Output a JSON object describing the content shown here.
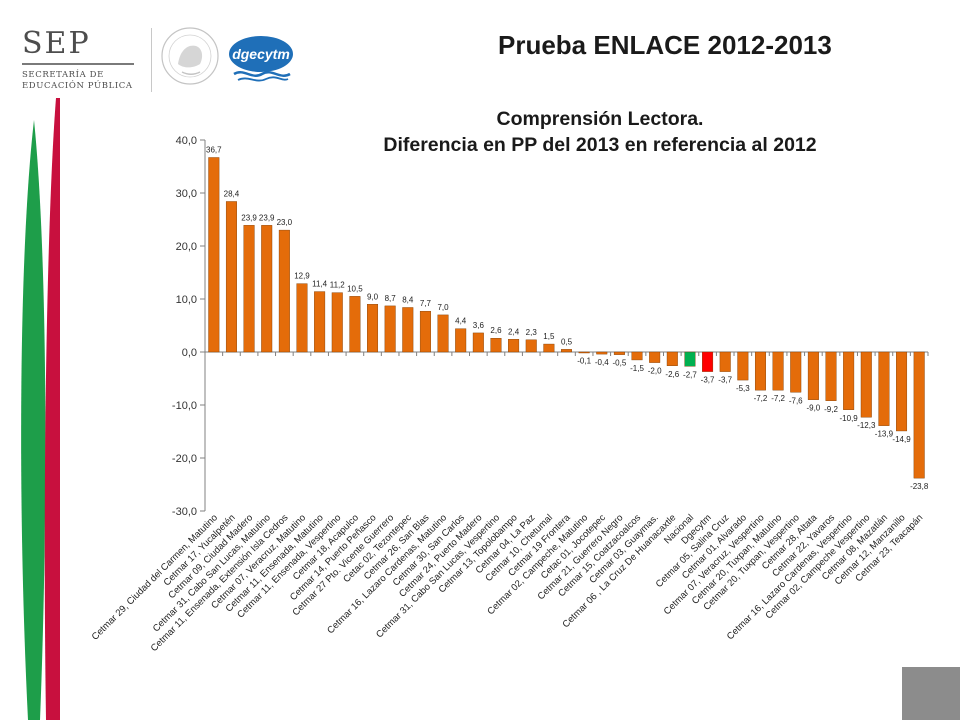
{
  "header": {
    "title": "Prueba ENLACE 2012-2013",
    "logos": {
      "sep": "SEP",
      "sep_subtitle_1": "SECRETARÍA DE",
      "sep_subtitle_2": "EDUCACIÓN PÚBLICA",
      "dgecytm": "dgecytm",
      "seal_text": "ESTADOS UNIDOS MEXICANOS"
    }
  },
  "colors": {
    "bar_default": "#E46C0A",
    "bar_national": "#00B050",
    "bar_dgecytm": "#FF0000",
    "stripe_green": "#1E9E4A",
    "stripe_red": "#C8103E"
  },
  "chart_data": {
    "type": "bar",
    "title": "Comprensión Lectora.",
    "subtitle": "Diferencia en PP del 2013 en referencia al 2012",
    "ylim": [
      -30,
      40
    ],
    "yticks": [
      "40,0",
      "30,0",
      "20,0",
      "10,0",
      "0,0",
      "-10,0",
      "-20,0",
      "-30,0"
    ],
    "grid": false,
    "legend": "none",
    "categories": [
      "Cetmar 29, Ciudad del Carmen, Matutino",
      "Cetmar 17, Yucalpetén",
      "Cetmar 09, Ciudad Madero",
      "Cetmar 31, Cabo San Lucas, Matutino",
      "Cetmar 11, Ensenada, Extensión Isla Cedros",
      "Cetmar 07, Veracruz, Matutino",
      "Cetmar 11, Ensenada, Matutino",
      "Cetmar 11, Ensenada, Vespertino",
      "Cetmar 18, Acapulco",
      "Cetmar 14, Puerto Peñasco",
      "Cetmar 27 Pto. Vicente Guerrero",
      "Cetac 02, Tezontepec",
      "Cetmar 26, San Blas",
      "Cetmar 16, Lazaro Cardenas, Matutino",
      "Cetmar 30, San Carlos",
      "Cetmar 24, Puerto Madero",
      "Cetmar 31, Cabo San Lucas, Vespertino",
      "Cetmar 13, Topolobampo",
      "Cetmar 04, La Paz",
      "Cetmar 10, Chetumal",
      "Cetmar 19 Frontera",
      "Cetmar 02, Campeche, Matutino",
      "Cetac 01, Jocotepec",
      "Cetmar 21, Guerrero Negro",
      "Cetmar 15, Coatzacoalcos",
      "Cetmar 03, Guaymas.",
      "Cetmar 06 , La Cruz De Huanacaxtle",
      "Nacional",
      "Dgecytm",
      "Cetmar 05, Salina Cruz",
      "Cetmar 01, Alvarado",
      "Cetmar 07, Veracruz, Vespertino",
      "Cetmar 20, Tuxpan, Matutino",
      "Cetmar 20, Tuxpan, Vespertino",
      "Cetmar 28, Altata",
      "Cetmar 22, Yavaros",
      "Cetmar 16, Lazaro Cardenas, Vespertino",
      "Cetmar 02, Campeche Vespertino",
      "Cetmar 08, Mazatlán",
      "Cetmar 12, Manzanillo",
      "Cetmar 23, Teacapán"
    ],
    "values": [
      36.7,
      28.4,
      23.9,
      23.9,
      23.0,
      12.9,
      11.4,
      11.2,
      10.5,
      9.0,
      8.7,
      8.4,
      7.7,
      7.0,
      4.4,
      3.6,
      2.6,
      2.4,
      2.3,
      1.5,
      0.5,
      -0.1,
      -0.4,
      -0.5,
      -1.5,
      -2.0,
      -2.6,
      -2.7,
      -3.7,
      -3.7,
      -5.3,
      -7.2,
      -7.2,
      -7.6,
      -9.0,
      -9.2,
      -10.9,
      -12.3,
      -13.9,
      -14.9,
      -23.8
    ],
    "data_labels": [
      "36,7",
      "28,4",
      "23,9",
      "23,9",
      "23,0",
      "12,9",
      "11,4",
      "11,2",
      "10,5",
      "9,0",
      "8,7",
      "8,4",
      "7,7",
      "7,0",
      "4,4",
      "3,6",
      "2,6",
      "2,4",
      "2,3",
      "1,5",
      "0,5",
      "-0,1",
      "-0,4",
      "-0,5",
      "-1,5",
      "-2,0",
      "-2,6",
      "-2,7",
      "-3,7",
      "-3,7",
      "-5,3",
      "-7,2",
      "-7,2",
      "-7,6",
      "-9,0",
      "-9,2",
      "-10,9",
      "-12,3",
      "-13,9",
      "-14,9",
      "-23,8"
    ],
    "highlights": {
      "Nacional": "bar_national",
      "Dgecytm": "bar_dgecytm"
    }
  }
}
